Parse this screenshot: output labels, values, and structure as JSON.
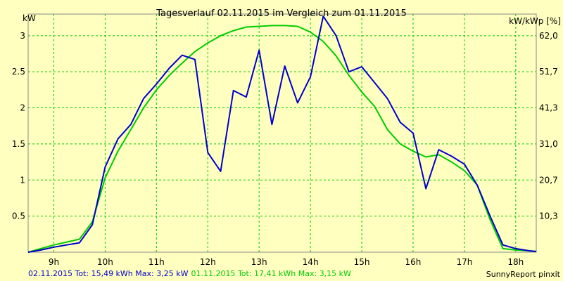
{
  "chart_data": {
    "type": "line",
    "title": "Tagesverlauf 02.11.2015 im Vergleich zum 01.11.2015",
    "ylabel_left": "kW",
    "ylabel_right": "kW/kWp [%]",
    "x_ticks": [
      "9h",
      "10h",
      "11h",
      "12h",
      "13h",
      "14h",
      "15h",
      "16h",
      "17h",
      "18h"
    ],
    "y_ticks_left": [
      "0.5",
      "1",
      "1.5",
      "2",
      "2.5",
      "3"
    ],
    "y_ticks_right": [
      "10,3",
      "20,7",
      "31,0",
      "41,3",
      "51,7",
      "62,0"
    ],
    "xlim": [
      8.5,
      18.4
    ],
    "ylim": [
      0,
      3.3
    ],
    "grid": true,
    "series": [
      {
        "name": "02.11.2015",
        "color": "#0000cc",
        "x": [
          8.5,
          8.75,
          9.0,
          9.25,
          9.5,
          9.75,
          10.0,
          10.25,
          10.5,
          10.75,
          11.0,
          11.25,
          11.5,
          11.75,
          12.0,
          12.25,
          12.5,
          12.75,
          13.0,
          13.25,
          13.5,
          13.75,
          14.0,
          14.25,
          14.5,
          14.75,
          15.0,
          15.25,
          15.5,
          15.75,
          16.0,
          16.25,
          16.5,
          16.75,
          17.0,
          17.25,
          17.5,
          17.75,
          18.0,
          18.25,
          18.4
        ],
        "values": [
          0.0,
          0.03,
          0.07,
          0.1,
          0.13,
          0.38,
          1.18,
          1.57,
          1.77,
          2.13,
          2.33,
          2.55,
          2.73,
          2.67,
          1.38,
          1.12,
          2.24,
          2.15,
          2.8,
          1.77,
          2.58,
          2.07,
          2.43,
          3.27,
          3.0,
          2.5,
          2.57,
          2.35,
          2.13,
          1.8,
          1.65,
          0.88,
          1.42,
          1.33,
          1.22,
          0.93,
          0.5,
          0.1,
          0.05,
          0.02,
          0.01
        ]
      },
      {
        "name": "01.11.2015",
        "color": "#00cc00",
        "x": [
          8.5,
          8.75,
          9.0,
          9.25,
          9.5,
          9.75,
          10.0,
          10.25,
          10.5,
          10.75,
          11.0,
          11.25,
          11.5,
          11.75,
          12.0,
          12.25,
          12.5,
          12.75,
          13.0,
          13.25,
          13.5,
          13.75,
          14.0,
          14.25,
          14.5,
          14.75,
          15.0,
          15.25,
          15.5,
          15.75,
          16.0,
          16.25,
          16.5,
          16.75,
          17.0,
          17.25,
          17.5,
          17.75,
          18.0,
          18.25,
          18.4
        ],
        "values": [
          0.0,
          0.05,
          0.1,
          0.14,
          0.18,
          0.42,
          1.03,
          1.4,
          1.7,
          2.0,
          2.25,
          2.45,
          2.62,
          2.78,
          2.9,
          3.0,
          3.07,
          3.12,
          3.13,
          3.14,
          3.14,
          3.13,
          3.05,
          2.92,
          2.72,
          2.45,
          2.22,
          2.02,
          1.7,
          1.5,
          1.4,
          1.32,
          1.35,
          1.25,
          1.13,
          0.93,
          0.45,
          0.05,
          0.03,
          0.02,
          0.01
        ]
      }
    ]
  },
  "footer": {
    "series1_summary": "02.11.2015 Tot: 15,49 kWh Max: 3,25 kW",
    "series2_summary": "01.11.2015 Tot: 17,41 kWh Max: 3,15 kW",
    "source": "SunnyReport pinxit"
  }
}
